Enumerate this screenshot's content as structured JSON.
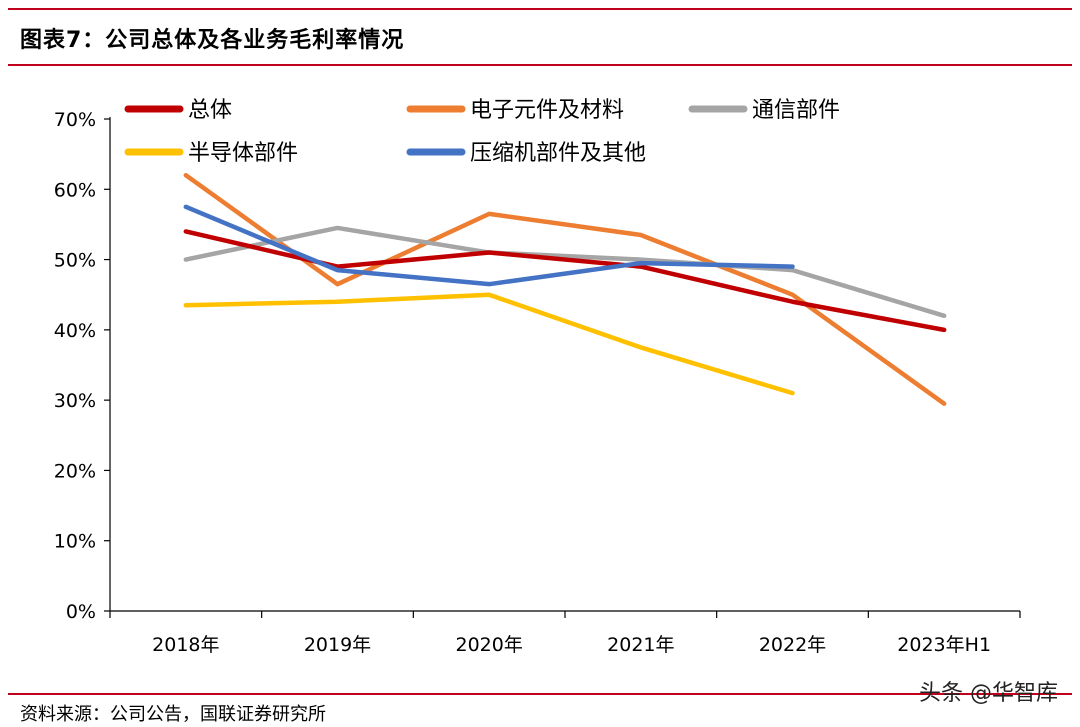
{
  "header": {
    "title": "图表7：公司总体及各业务毛利率情况"
  },
  "footer": {
    "source": "资料来源：公司公告，国联证券研究所",
    "watermark": "头条 @华智库"
  },
  "chart_data": {
    "type": "line",
    "title": "图表7：公司总体及各业务毛利率情况",
    "xlabel": "",
    "ylabel": "",
    "categories": [
      "2018年",
      "2019年",
      "2020年",
      "2021年",
      "2022年",
      "2023年H1"
    ],
    "yticks": [
      "0%",
      "10%",
      "20%",
      "30%",
      "40%",
      "50%",
      "60%",
      "70%"
    ],
    "ylim": [
      0,
      70
    ],
    "legend_position": "top",
    "series": [
      {
        "name": "总体",
        "color": "#c00000",
        "values": [
          54,
          49,
          51,
          49,
          44,
          40
        ]
      },
      {
        "name": "电子元件及材料",
        "color": "#ed7d31",
        "values": [
          62,
          46.5,
          56.5,
          53.5,
          45,
          29.5
        ]
      },
      {
        "name": "通信部件",
        "color": "#a5a5a5",
        "values": [
          50,
          54.5,
          51,
          50,
          48.5,
          42
        ]
      },
      {
        "name": "半导体部件",
        "color": "#ffc000",
        "values": [
          43.5,
          44,
          45,
          37.5,
          31,
          null
        ]
      },
      {
        "name": "压缩机部件及其他",
        "color": "#4472c4",
        "values": [
          57.5,
          48.5,
          46.5,
          49.5,
          49,
          null
        ]
      }
    ]
  }
}
